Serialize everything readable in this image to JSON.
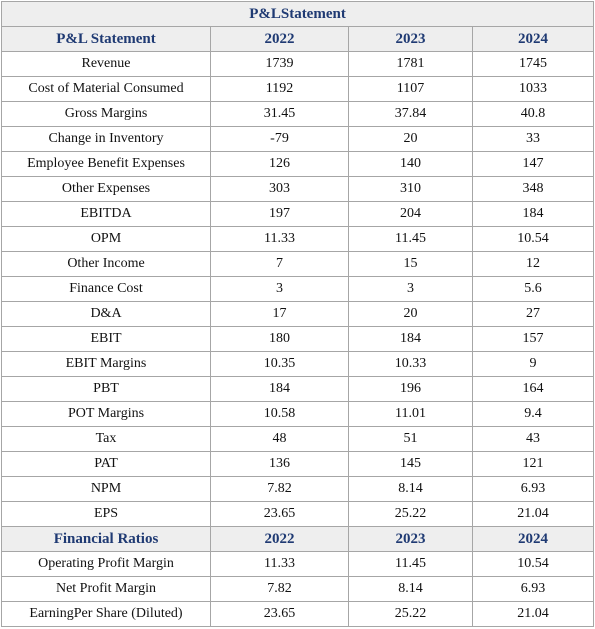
{
  "title": "P&LStatement",
  "sections": [
    {
      "header": [
        "P&L Statement",
        "2022",
        "2023",
        "2024"
      ],
      "rows": [
        [
          "Revenue",
          "1739",
          "1781",
          "1745"
        ],
        [
          "Cost of Material Consumed",
          "1192",
          "1107",
          "1033"
        ],
        [
          "Gross Margins",
          "31.45",
          "37.84",
          "40.8"
        ],
        [
          "Change in Inventory",
          "-79",
          "20",
          "33"
        ],
        [
          "Employee Benefit Expenses",
          "126",
          "140",
          "147"
        ],
        [
          "Other Expenses",
          "303",
          "310",
          "348"
        ],
        [
          "EBITDA",
          "197",
          "204",
          "184"
        ],
        [
          "OPM",
          "11.33",
          "11.45",
          "10.54"
        ],
        [
          "Other Income",
          "7",
          "15",
          "12"
        ],
        [
          "Finance Cost",
          "3",
          "3",
          "5.6"
        ],
        [
          "D&A",
          "17",
          "20",
          "27"
        ],
        [
          "EBIT",
          "180",
          "184",
          "157"
        ],
        [
          "EBIT Margins",
          "10.35",
          "10.33",
          "9"
        ],
        [
          "PBT",
          "184",
          "196",
          "164"
        ],
        [
          "POT Margins",
          "10.58",
          "11.01",
          "9.4"
        ],
        [
          "Tax",
          "48",
          "51",
          "43"
        ],
        [
          "PAT",
          "136",
          "145",
          "121"
        ],
        [
          "NPM",
          "7.82",
          "8.14",
          "6.93"
        ],
        [
          "EPS",
          "23.65",
          "25.22",
          "21.04"
        ]
      ]
    },
    {
      "header": [
        "Financial Ratios",
        "2022",
        "2023",
        "2024"
      ],
      "rows": [
        [
          "Operating Profit Margin",
          "11.33",
          "11.45",
          "10.54"
        ],
        [
          "Net Profit Margin",
          "7.82",
          "8.14",
          "6.93"
        ],
        [
          "EarningPer Share (Diluted)",
          "23.65",
          "25.22",
          "21.04"
        ]
      ]
    }
  ]
}
